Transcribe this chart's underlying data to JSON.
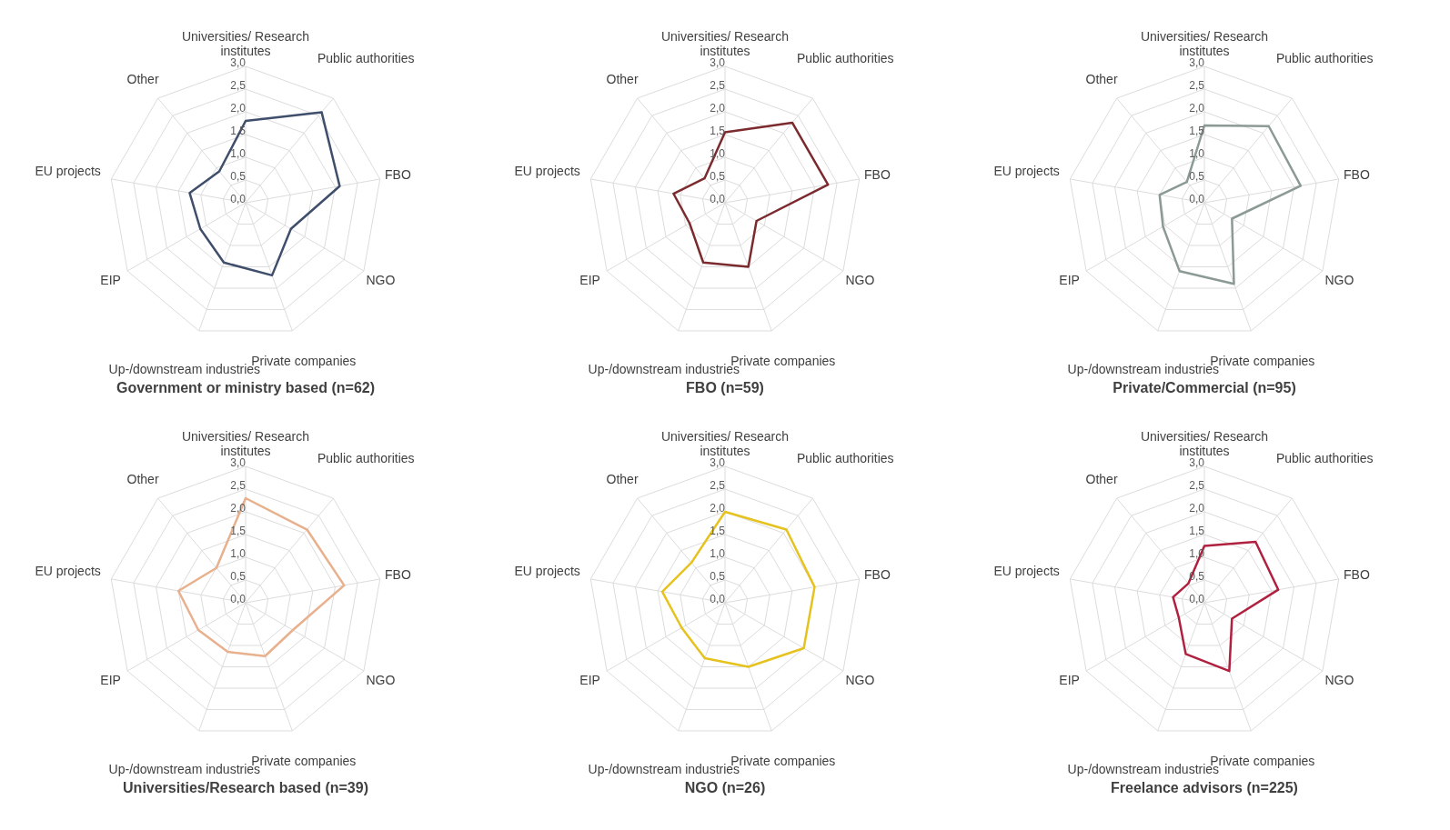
{
  "chart_data": [
    {
      "type": "radar",
      "title": "Government or ministry based (n=62)",
      "categories": [
        "Universities/ Research institutes",
        "Public authorities",
        "FBO",
        "NGO",
        "Private companies",
        "Up-/downstream industries",
        "EIP",
        "EU projects",
        "Other"
      ],
      "series": [
        {
          "color": "#3f4e6b",
          "values": [
            1.8,
            2.6,
            2.1,
            1.15,
            1.7,
            1.4,
            1.15,
            1.25,
            0.9
          ]
        }
      ],
      "ylim": [
        0,
        3
      ],
      "yticks": [
        {
          "value": 0,
          "label": "0,0"
        },
        {
          "value": 0.5,
          "label": "0,5"
        },
        {
          "value": 1,
          "label": "1,0"
        },
        {
          "value": 1.5,
          "label": "1,5"
        },
        {
          "value": 2,
          "label": "2,0"
        },
        {
          "value": 2.5,
          "label": "2,5"
        },
        {
          "value": 3,
          "label": "3,0"
        }
      ],
      "grid": true
    },
    {
      "type": "radar",
      "title": "FBO (n=59)",
      "categories": [
        "Universities/ Research institutes",
        "Public authorities",
        "FBO",
        "NGO",
        "Private companies",
        "Up-/downstream industries",
        "EIP",
        "EU projects",
        "Other"
      ],
      "series": [
        {
          "color": "#7b2a2e",
          "values": [
            1.55,
            2.3,
            2.3,
            0.8,
            1.5,
            1.4,
            0.9,
            1.15,
            0.7
          ]
        }
      ],
      "ylim": [
        0,
        3
      ],
      "yticks": [
        {
          "value": 0,
          "label": "0,0"
        },
        {
          "value": 0.5,
          "label": "0,5"
        },
        {
          "value": 1,
          "label": "1,0"
        },
        {
          "value": 1.5,
          "label": "1,5"
        },
        {
          "value": 2,
          "label": "2,0"
        },
        {
          "value": 2.5,
          "label": "2,5"
        },
        {
          "value": 3,
          "label": "3,0"
        }
      ],
      "grid": true
    },
    {
      "type": "radar",
      "title": "Private/Commercial (n=95)",
      "categories": [
        "Universities/ Research institutes",
        "Public authorities",
        "FBO",
        "NGO",
        "Private companies",
        "Up-/downstream industries",
        "EIP",
        "EU projects",
        "Other"
      ],
      "series": [
        {
          "color": "#8c9a96",
          "values": [
            1.7,
            2.2,
            2.15,
            0.7,
            1.9,
            1.6,
            1.05,
            1.0,
            0.6
          ]
        }
      ],
      "ylim": [
        0,
        3
      ],
      "yticks": [
        {
          "value": 0,
          "label": "0,0"
        },
        {
          "value": 0.5,
          "label": "0,5"
        },
        {
          "value": 1,
          "label": "1,0"
        },
        {
          "value": 1.5,
          "label": "1,5"
        },
        {
          "value": 2,
          "label": "2,0"
        },
        {
          "value": 2.5,
          "label": "2,5"
        },
        {
          "value": 3,
          "label": "3,0"
        }
      ],
      "grid": true
    },
    {
      "type": "radar",
      "title": "Universities/Research based (n=39)",
      "categories": [
        "Universities/ Research institutes",
        "Public authorities",
        "FBO",
        "NGO",
        "Private companies",
        "Up-/downstream industries",
        "EIP",
        "EU projects",
        "Other"
      ],
      "series": [
        {
          "color": "#e8b08c",
          "values": [
            2.3,
            2.1,
            2.2,
            1.2,
            1.25,
            1.15,
            1.2,
            1.5,
            1.0
          ]
        }
      ],
      "ylim": [
        0,
        3
      ],
      "yticks": [
        {
          "value": 0,
          "label": "0,0"
        },
        {
          "value": 0.5,
          "label": "0,5"
        },
        {
          "value": 1,
          "label": "1,0"
        },
        {
          "value": 1.5,
          "label": "1,5"
        },
        {
          "value": 2,
          "label": "2,0"
        },
        {
          "value": 2.5,
          "label": "2,5"
        },
        {
          "value": 3,
          "label": "3,0"
        }
      ],
      "grid": true
    },
    {
      "type": "radar",
      "title": "NGO (n=26)",
      "categories": [
        "Universities/ Research institutes",
        "Public authorities",
        "FBO",
        "NGO",
        "Private companies",
        "Up-/downstream industries",
        "EIP",
        "EU projects",
        "Other"
      ],
      "series": [
        {
          "color": "#e6c21e",
          "values": [
            2.0,
            2.1,
            2.0,
            2.0,
            1.5,
            1.3,
            1.1,
            1.4,
            1.15
          ]
        }
      ],
      "ylim": [
        0,
        3
      ],
      "yticks": [
        {
          "value": 0,
          "label": "0,0"
        },
        {
          "value": 0.5,
          "label": "0,5"
        },
        {
          "value": 1,
          "label": "1,0"
        },
        {
          "value": 1.5,
          "label": "1,5"
        },
        {
          "value": 2,
          "label": "2,0"
        },
        {
          "value": 2.5,
          "label": "2,5"
        },
        {
          "value": 3,
          "label": "3,0"
        }
      ],
      "grid": true
    },
    {
      "type": "radar",
      "title": "Freelance advisors (n=225)",
      "categories": [
        "Universities/ Research institutes",
        "Public authorities",
        "FBO",
        "NGO",
        "Private companies",
        "Up-/downstream industries",
        "EIP",
        "EU projects",
        "Other"
      ],
      "series": [
        {
          "color": "#b0203f",
          "values": [
            1.25,
            1.75,
            1.65,
            0.7,
            1.6,
            1.2,
            0.65,
            0.7,
            0.55
          ]
        }
      ],
      "ylim": [
        0,
        3
      ],
      "yticks": [
        {
          "value": 0,
          "label": "0,0"
        },
        {
          "value": 0.5,
          "label": "0,5"
        },
        {
          "value": 1,
          "label": "1,0"
        },
        {
          "value": 1.5,
          "label": "1,5"
        },
        {
          "value": 2,
          "label": "2,0"
        },
        {
          "value": 2.5,
          "label": "2,5"
        },
        {
          "value": 3,
          "label": "3,0"
        }
      ],
      "grid": true
    }
  ]
}
